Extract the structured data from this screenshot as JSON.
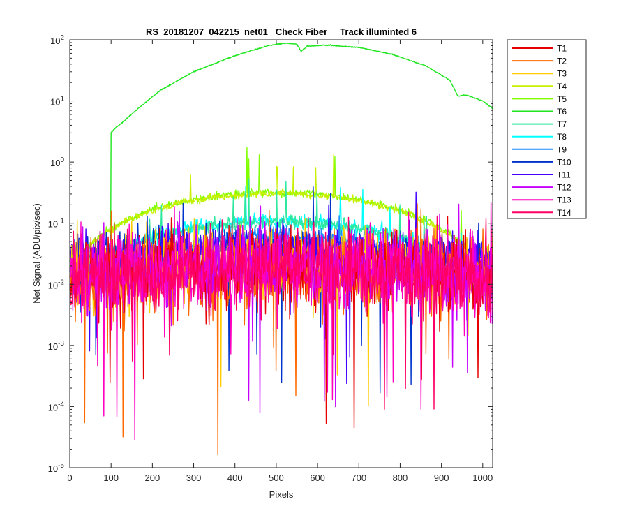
{
  "chart_data": {
    "type": "line",
    "title": "RS_20181207_042215_net01   Check Fiber     Track illuminted 6",
    "xlabel": "Pixels",
    "ylabel": "Net Signal (ADU/pix/sec)",
    "xlim": [
      0,
      1024
    ],
    "ylim": [
      1e-05,
      100
    ],
    "yscale": "log",
    "grid": false,
    "legend_position": "outside-top-right",
    "x_ticks": [
      0,
      100,
      200,
      300,
      400,
      500,
      600,
      700,
      800,
      900,
      1000
    ],
    "x_tick_labels": [
      "0",
      "100",
      "200",
      "300",
      "400",
      "500",
      "600",
      "700",
      "800",
      "900",
      "1000"
    ],
    "y_ticks": [
      1e-05,
      0.0001,
      0.001,
      0.01,
      0.1,
      1,
      10,
      100
    ],
    "y_tick_labels": [
      {
        "base": "10",
        "exp": "-5"
      },
      {
        "base": "10",
        "exp": "-4"
      },
      {
        "base": "10",
        "exp": "-3"
      },
      {
        "base": "10",
        "exp": "-2"
      },
      {
        "base": "10",
        "exp": "-1"
      },
      {
        "base": "10",
        "exp": "0"
      },
      {
        "base": "10",
        "exp": "1"
      },
      {
        "base": "10",
        "exp": "2"
      }
    ],
    "series": [
      {
        "name": "T1",
        "color": "#e60000",
        "profile": "noise",
        "level": 0.012,
        "noise_sd": 0.32
      },
      {
        "name": "T2",
        "color": "#ff6a00",
        "profile": "noise",
        "level": 0.012,
        "noise_sd": 0.32
      },
      {
        "name": "T3",
        "color": "#ffcc00",
        "profile": "noise",
        "level": 0.015,
        "noise_sd": 0.28
      },
      {
        "name": "T4",
        "color": "#c8f000",
        "profile": "hump",
        "peak": 0.3,
        "noise_sd": 0.03
      },
      {
        "name": "T5",
        "color": "#80ff00",
        "profile": "hump",
        "peak": 0.31,
        "noise_sd": 0.03
      },
      {
        "name": "T6",
        "color": "#1ee61e",
        "profile": "bright",
        "x": [
          100,
          105,
          110,
          130,
          170,
          220,
          300,
          400,
          480,
          520,
          550,
          560,
          575,
          620,
          700,
          780,
          860,
          920,
          940,
          960,
          1000,
          1024
        ],
        "y": [
          3,
          3.3,
          3.6,
          4.6,
          8,
          15,
          30,
          55,
          80,
          88,
          85,
          65,
          78,
          82,
          75,
          58,
          38,
          22,
          12,
          12.5,
          10,
          7.5
        ]
      },
      {
        "name": "T7",
        "color": "#2ee8a0",
        "profile": "hump",
        "peak": 0.1,
        "noise_sd": 0.05
      },
      {
        "name": "T8",
        "color": "#00ffff",
        "profile": "hump",
        "peak": 0.1,
        "noise_sd": 0.06
      },
      {
        "name": "T9",
        "color": "#1a8cff",
        "profile": "hump",
        "peak": 0.055,
        "noise_sd": 0.08
      },
      {
        "name": "T10",
        "color": "#0033cc",
        "profile": "noise",
        "level": 0.028,
        "noise_sd": 0.14
      },
      {
        "name": "T11",
        "color": "#4400ff",
        "profile": "noise",
        "level": 0.025,
        "noise_sd": 0.16
      },
      {
        "name": "T12",
        "color": "#c800ff",
        "profile": "noise",
        "level": 0.014,
        "noise_sd": 0.3
      },
      {
        "name": "T13",
        "color": "#ff00c0",
        "profile": "noise",
        "level": 0.012,
        "noise_sd": 0.32
      },
      {
        "name": "T14",
        "color": "#ff0066",
        "profile": "noise",
        "level": 0.012,
        "noise_sd": 0.3
      }
    ]
  }
}
